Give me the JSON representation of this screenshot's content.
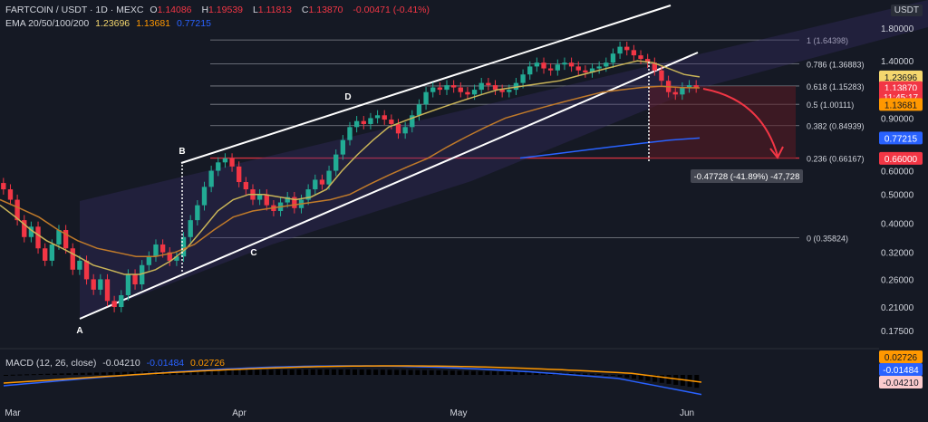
{
  "header": {
    "symbol_line": "FARTCOIN / USDT · 1D · MEXC",
    "ohlc": {
      "o_label": "O",
      "o": "1.14086",
      "h_label": "H",
      "h": "1.19539",
      "l_label": "L",
      "l": "1.11813",
      "c_label": "C",
      "c": "1.13870",
      "change": "-0.00471 (-0.41%)"
    },
    "ema_label": "EMA 20/50/100/200",
    "ema_values": [
      "1.23696",
      "1.13681",
      "0.77215"
    ],
    "currency": "USDT"
  },
  "macd": {
    "label": "MACD (12, 26, close)",
    "values": [
      "-0.04210",
      "-0.01484",
      "0.02726"
    ]
  },
  "price_axis": {
    "ticks": [
      "1.80000",
      "1.40000",
      "0.90000",
      "0.60000",
      "0.50000",
      "0.40000",
      "0.32000",
      "0.26000",
      "0.21000",
      "0.17500"
    ],
    "badges": [
      {
        "text": "1.23696",
        "bg": "#f5d76e",
        "fg": "#131722"
      },
      {
        "text": "1.13870",
        "bg": "#f23645",
        "fg": "#ffffff"
      },
      {
        "text": "11:45:17",
        "bg": "#f23645",
        "fg": "#ffffff"
      },
      {
        "text": "1.13681",
        "bg": "#ff9800",
        "fg": "#131722"
      },
      {
        "text": "0.77215",
        "bg": "#2962ff",
        "fg": "#ffffff"
      },
      {
        "text": "0.66000",
        "bg": "#f23645",
        "fg": "#ffffff"
      }
    ],
    "macd_badges": [
      {
        "text": "0.02726",
        "bg": "#ff9800",
        "fg": "#131722"
      },
      {
        "text": "-0.01484",
        "bg": "#2962ff",
        "fg": "#ffffff"
      },
      {
        "text": "-0.04210",
        "bg": "#fccbcd",
        "fg": "#131722"
      }
    ]
  },
  "time_axis": [
    "Mar",
    "Apr",
    "May",
    "Jun"
  ],
  "chart_data": {
    "type": "candlestick",
    "scale": "log",
    "ylim": [
      0.16,
      2.0
    ],
    "fib_levels": [
      {
        "ratio": 1,
        "price": 1.64398,
        "label": "1 (1.64398)"
      },
      {
        "ratio": 0.786,
        "price": 1.36883,
        "label": "0.786 (1.36883)"
      },
      {
        "ratio": 0.618,
        "price": 1.15283,
        "label": "0.618 (1.15283)"
      },
      {
        "ratio": 0.5,
        "price": 1.00111,
        "label": "0.5 (1.00111)"
      },
      {
        "ratio": 0.382,
        "price": 0.84939,
        "label": "0.382 (0.84939)"
      },
      {
        "ratio": 0.236,
        "price": 0.66167,
        "label": "0.236 (0.66167)"
      },
      {
        "ratio": 0,
        "price": 0.35824,
        "label": "0 (0.35824)"
      }
    ],
    "pattern_points": [
      "A",
      "B",
      "C",
      "D"
    ],
    "measure_label": "-0.47728 (-41.89%) -47,728",
    "target_price": 0.66,
    "closes": [
      0.52,
      0.48,
      0.41,
      0.36,
      0.39,
      0.33,
      0.3,
      0.34,
      0.38,
      0.33,
      0.28,
      0.3,
      0.26,
      0.24,
      0.26,
      0.22,
      0.21,
      0.23,
      0.27,
      0.25,
      0.29,
      0.31,
      0.34,
      0.32,
      0.3,
      0.31,
      0.36,
      0.41,
      0.46,
      0.53,
      0.6,
      0.64,
      0.66,
      0.62,
      0.55,
      0.52,
      0.48,
      0.5,
      0.46,
      0.44,
      0.47,
      0.49,
      0.45,
      0.48,
      0.52,
      0.56,
      0.54,
      0.6,
      0.68,
      0.76,
      0.84,
      0.88,
      0.86,
      0.9,
      0.92,
      0.89,
      0.86,
      0.8,
      0.84,
      0.92,
      1.0,
      1.1,
      1.14,
      1.12,
      1.16,
      1.14,
      1.1,
      1.08,
      1.12,
      1.18,
      1.16,
      1.12,
      1.1,
      1.12,
      1.18,
      1.26,
      1.34,
      1.38,
      1.32,
      1.3,
      1.36,
      1.38,
      1.34,
      1.3,
      1.28,
      1.32,
      1.34,
      1.38,
      1.48,
      1.56,
      1.52,
      1.46,
      1.42,
      1.38,
      1.3,
      1.2,
      1.1,
      1.08,
      1.14,
      1.16,
      1.14
    ],
    "ema20": [
      0.46,
      0.42,
      0.38,
      0.35,
      0.33,
      0.31,
      0.29,
      0.28,
      0.27,
      0.27,
      0.28,
      0.3,
      0.33,
      0.38,
      0.44,
      0.48,
      0.5,
      0.5,
      0.49,
      0.48,
      0.49,
      0.52,
      0.6,
      0.68,
      0.76,
      0.84,
      0.88,
      0.92,
      0.96,
      1.0,
      1.04,
      1.08,
      1.12,
      1.14,
      1.16,
      1.18,
      1.2,
      1.24,
      1.28,
      1.32,
      1.36,
      1.4,
      1.38,
      1.32,
      1.26,
      1.23696
    ],
    "ema50": [
      0.48,
      0.45,
      0.42,
      0.38,
      0.35,
      0.33,
      0.32,
      0.31,
      0.31,
      0.32,
      0.34,
      0.38,
      0.42,
      0.44,
      0.45,
      0.46,
      0.47,
      0.48,
      0.5,
      0.54,
      0.58,
      0.62,
      0.66,
      0.72,
      0.78,
      0.84,
      0.9,
      0.94,
      0.98,
      1.02,
      1.06,
      1.1,
      1.12,
      1.14,
      1.15,
      1.14,
      1.13681
    ],
    "ema200": [
      0.66167,
      0.68,
      0.7,
      0.72,
      0.74,
      0.76,
      0.77215
    ]
  }
}
